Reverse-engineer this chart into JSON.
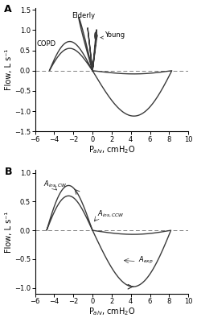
{
  "panel_A_label": "A",
  "panel_B_label": "B",
  "xlabel": "P$_{alv}$, cmH$_2$O",
  "ylabel": "Flow, L s⁻¹",
  "xlim": [
    -6,
    10
  ],
  "ylim_A": [
    -1.5,
    1.55
  ],
  "ylim_B": [
    -1.1,
    1.05
  ],
  "yticks_A": [
    -1.5,
    -1.0,
    -0.5,
    0.0,
    0.5,
    1.0,
    1.5
  ],
  "yticks_B": [
    -1.0,
    -0.5,
    0.0,
    0.5,
    1.0
  ],
  "xticks": [
    -6,
    -4,
    -2,
    0,
    2,
    4,
    6,
    8,
    10
  ],
  "background_color": "#ffffff",
  "loop_color": "#3a3a3a",
  "dashes": [
    5,
    3
  ]
}
